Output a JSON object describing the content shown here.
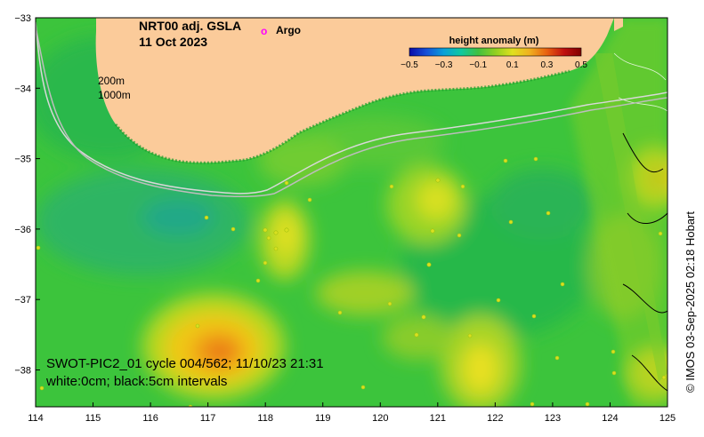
{
  "map": {
    "title_line1": "NRT00 adj. GSLA",
    "title_line2": "11 Oct 2023",
    "argo_marker": "o",
    "argo_label": "Argo",
    "contour_200": "200m",
    "contour_1000": "1000m",
    "swot_line1": "SWOT-PIC2_01 cycle 004/562; 11/10/23 21:31",
    "swot_line2": "white:0cm; black:5cm intervals",
    "credit": "© IMOS 03-Sep-2025 02:18 Hobart"
  },
  "colorbar": {
    "title": "height anomaly (m)",
    "ticks": [
      "−0.5",
      "−0.3",
      "−0.1",
      "0.1",
      "0.3",
      "0.5"
    ],
    "colors": [
      "#0a0aa8",
      "#1450d8",
      "#0aa0d8",
      "#10c8a0",
      "#40c040",
      "#90d020",
      "#e0e020",
      "#f0b020",
      "#e86010",
      "#c01010",
      "#800000"
    ]
  },
  "axes": {
    "x_ticks": [
      "114",
      "115",
      "116",
      "117",
      "118",
      "119",
      "120",
      "121",
      "122",
      "123",
      "124",
      "125"
    ],
    "y_ticks": [
      "−33",
      "−34",
      "−35",
      "−36",
      "−37",
      "−38"
    ]
  },
  "colors": {
    "land": "#fbcb9a",
    "ocean_base": "#38c040",
    "argo": "#ff00ff"
  }
}
